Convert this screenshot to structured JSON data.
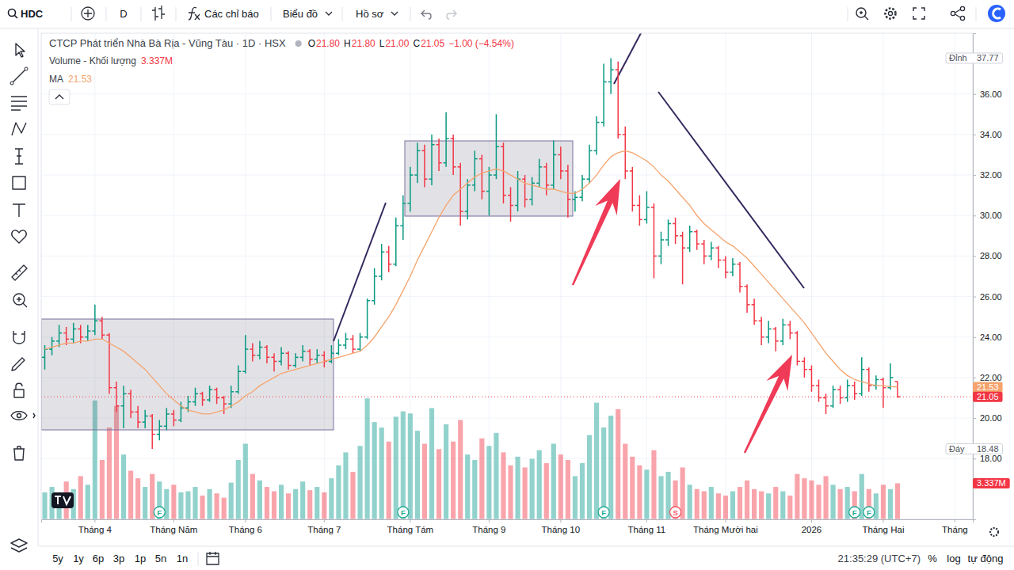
{
  "ui": {
    "symbol": "HDC",
    "interval": "D",
    "indicators": "Các chỉ báo",
    "chart_menu": "Biểu đồ",
    "profile_menu": "Hồ sơ",
    "ranges": [
      "5y",
      "1y",
      "6p",
      "3p",
      "1p",
      "5n",
      "1n"
    ],
    "clock": "21:35:29 (UTC+7)",
    "percent_button": "%",
    "log_button": "log",
    "auto_button": "tự động"
  },
  "chart_data": {
    "type": "ohlc",
    "title": "CTCP Phát triển Nhà Bà Rịa - Vũng Tàu · 1D · HSX",
    "ohlc_legend": [
      {
        "key": "O",
        "value": "21.80"
      },
      {
        "key": "H",
        "value": "21.80"
      },
      {
        "key": "L",
        "value": "21.00"
      },
      {
        "key": "C",
        "value": "21.05"
      }
    ],
    "change": "−1.00 (−4.54%)",
    "categories": [
      null,
      null,
      null,
      null,
      null,
      null,
      null,
      "Tháng 4",
      null,
      null,
      null,
      null,
      null,
      null,
      null,
      null,
      null,
      null,
      "Tháng Năm",
      null,
      null,
      null,
      null,
      null,
      null,
      null,
      null,
      null,
      "Tháng 6",
      null,
      null,
      null,
      null,
      null,
      null,
      null,
      null,
      null,
      null,
      "Tháng 7",
      null,
      null,
      null,
      null,
      null,
      null,
      null,
      null,
      null,
      null,
      null,
      "Tháng Tám",
      null,
      null,
      null,
      null,
      null,
      null,
      null,
      null,
      null,
      null,
      "Tháng 9",
      null,
      null,
      null,
      null,
      null,
      null,
      null,
      null,
      null,
      "Tháng 10",
      null,
      null,
      null,
      null,
      null,
      null,
      null,
      null,
      null,
      null,
      null,
      "Tháng 11",
      null,
      null,
      null,
      null,
      null,
      null,
      null,
      null,
      null,
      null,
      "Tháng Mười hai",
      null,
      null,
      null,
      null,
      null,
      null,
      null,
      null,
      null,
      null,
      null,
      "2026",
      null,
      null,
      null,
      null,
      null,
      null,
      null,
      null,
      null,
      "Tháng Hai",
      null,
      null,
      null,
      null,
      null,
      null,
      null,
      null,
      null,
      "Tháng",
      null,
      null
    ],
    "series": [
      {
        "type": "ohlc",
        "open": [
          23.0,
          23.4,
          23.8,
          24.2,
          23.9,
          24.4,
          24.0,
          24.3,
          24.8,
          24.1,
          21.5,
          20.6,
          21.2,
          20.3,
          19.8,
          20.1,
          19.2,
          19.6,
          20.2,
          19.9,
          20.5,
          20.8,
          21.2,
          20.9,
          21.4,
          21.0,
          20.7,
          21.3,
          22.3,
          23.4,
          23.1,
          23.5,
          23.0,
          22.8,
          23.2,
          22.6,
          23.0,
          23.3,
          22.9,
          23.1,
          22.8,
          23.2,
          23.6,
          23.9,
          23.4,
          24.0,
          25.8,
          27.0,
          28.2,
          27.6,
          29.5,
          30.6,
          32.0,
          33.2,
          31.8,
          33.5,
          32.6,
          33.8,
          32.4,
          30.2,
          31.5,
          32.8,
          31.2,
          32.0,
          33.4,
          31.0,
          30.5,
          31.8,
          30.8,
          31.6,
          32.4,
          31.5,
          33.0,
          32.2,
          30.8,
          30.9,
          31.8,
          33.2,
          34.6,
          36.6,
          37.2,
          34.0,
          32.2,
          30.5,
          29.8,
          30.4,
          28.0,
          28.8,
          29.6,
          29.0,
          28.4,
          29.2,
          28.6,
          28.0,
          28.4,
          27.8,
          27.2,
          27.6,
          26.5,
          25.6,
          24.8,
          24.0,
          24.4,
          23.8,
          24.6,
          24.2,
          22.8,
          22.4,
          21.6,
          21.0,
          20.6,
          21.4,
          21.0,
          21.6,
          21.2,
          22.4,
          21.6,
          21.9,
          21.5,
          21.8,
          null,
          null,
          null,
          null,
          null,
          null,
          null,
          null,
          null,
          null
        ],
        "high": [
          23.6,
          24.0,
          24.6,
          24.5,
          24.7,
          24.6,
          24.6,
          25.6,
          25.0,
          24.2,
          21.8,
          21.6,
          21.4,
          20.6,
          20.4,
          20.2,
          19.9,
          20.5,
          20.4,
          20.8,
          21.1,
          21.5,
          21.3,
          21.6,
          21.5,
          21.1,
          21.6,
          22.6,
          24.1,
          23.7,
          23.8,
          23.6,
          23.2,
          23.5,
          23.3,
          23.2,
          23.6,
          23.4,
          23.4,
          23.3,
          23.6,
          23.9,
          24.2,
          24.1,
          24.2,
          25.9,
          27.4,
          28.6,
          28.5,
          29.9,
          31.0,
          32.4,
          33.6,
          33.5,
          34.0,
          33.8,
          35.1,
          34.0,
          32.6,
          31.8,
          33.2,
          33.0,
          32.4,
          35.0,
          33.6,
          31.4,
          32.2,
          32.0,
          31.9,
          32.8,
          32.6,
          33.7,
          33.4,
          32.5,
          31.2,
          32.0,
          33.5,
          34.9,
          37.5,
          37.77,
          37.6,
          34.4,
          32.4,
          31.0,
          31.2,
          30.6,
          29.2,
          29.8,
          29.9,
          29.2,
          29.5,
          29.3,
          28.8,
          28.7,
          28.5,
          28.0,
          27.9,
          27.7,
          26.6,
          25.9,
          25.0,
          24.8,
          24.5,
          24.9,
          24.8,
          24.3,
          23.0,
          22.6,
          21.9,
          21.2,
          21.6,
          21.6,
          21.9,
          21.8,
          23.0,
          22.5,
          22.1,
          22.0,
          22.7,
          21.8,
          null,
          null,
          null,
          null,
          null,
          null,
          null,
          null,
          null,
          null
        ],
        "low": [
          22.4,
          23.1,
          23.5,
          23.6,
          23.7,
          23.7,
          23.8,
          24.1,
          23.9,
          21.2,
          20.3,
          19.5,
          20.0,
          19.5,
          19.5,
          18.48,
          18.9,
          19.4,
          19.6,
          19.8,
          20.3,
          20.6,
          20.6,
          20.8,
          20.7,
          20.2,
          20.5,
          21.2,
          22.2,
          22.8,
          22.9,
          22.7,
          22.3,
          22.6,
          22.4,
          22.5,
          22.8,
          22.6,
          22.7,
          22.5,
          22.7,
          23.1,
          23.4,
          23.2,
          23.3,
          23.9,
          25.6,
          26.8,
          27.2,
          27.5,
          28.8,
          30.2,
          31.6,
          31.4,
          31.5,
          32.2,
          32.4,
          32.0,
          29.5,
          29.8,
          31.2,
          30.8,
          30.0,
          31.8,
          30.6,
          29.7,
          30.2,
          30.4,
          30.5,
          31.4,
          31.0,
          31.3,
          31.8,
          29.9,
          30.2,
          30.7,
          31.6,
          33.0,
          34.4,
          36.0,
          33.8,
          31.8,
          30.2,
          29.5,
          29.6,
          26.9,
          27.6,
          28.5,
          28.6,
          26.6,
          28.2,
          28.3,
          27.6,
          27.8,
          27.4,
          26.9,
          27.0,
          26.2,
          25.2,
          24.6,
          23.6,
          23.7,
          23.3,
          23.6,
          23.9,
          22.6,
          22.0,
          21.3,
          20.8,
          20.2,
          20.5,
          20.7,
          20.8,
          20.9,
          21.1,
          21.3,
          21.4,
          20.5,
          21.4,
          21.0,
          null,
          null,
          null,
          null,
          null,
          null,
          null,
          null,
          null,
          null
        ],
        "close": [
          23.4,
          23.8,
          24.2,
          23.9,
          24.4,
          24.0,
          24.3,
          24.8,
          24.1,
          21.5,
          20.6,
          21.2,
          20.3,
          19.8,
          20.1,
          19.2,
          19.6,
          20.2,
          19.9,
          20.5,
          20.8,
          21.2,
          20.9,
          21.4,
          21.0,
          20.7,
          21.3,
          22.3,
          23.4,
          23.1,
          23.5,
          23.0,
          22.8,
          23.2,
          22.6,
          23.0,
          23.3,
          22.9,
          23.1,
          22.8,
          23.2,
          23.6,
          23.9,
          23.4,
          24.0,
          25.8,
          27.0,
          28.2,
          27.6,
          29.5,
          30.6,
          32.0,
          33.2,
          31.8,
          33.5,
          32.6,
          33.8,
          32.4,
          30.2,
          31.5,
          32.8,
          31.2,
          32.0,
          33.4,
          31.0,
          30.5,
          31.8,
          30.8,
          31.6,
          32.4,
          31.5,
          33.0,
          32.2,
          30.8,
          30.9,
          31.8,
          33.2,
          34.6,
          36.6,
          37.2,
          34.0,
          32.2,
          30.5,
          29.8,
          30.4,
          28.0,
          28.8,
          29.6,
          29.0,
          28.4,
          29.2,
          28.6,
          28.0,
          28.4,
          27.8,
          27.2,
          27.6,
          26.5,
          25.6,
          24.8,
          24.0,
          24.4,
          23.8,
          24.6,
          24.2,
          22.8,
          22.4,
          21.6,
          21.0,
          20.6,
          21.4,
          21.0,
          21.6,
          21.2,
          22.4,
          21.6,
          21.9,
          21.5,
          22.0,
          21.05,
          null,
          null,
          null,
          null,
          null,
          null,
          null,
          null,
          null,
          null
        ]
      },
      {
        "name": "Volume - Khối lượng",
        "type": "bar",
        "axis": "y2",
        "legend_value": "3.337M",
        "values": [
          2.5,
          3.0,
          2.2,
          3.5,
          2.8,
          4.0,
          3.2,
          11.0,
          5.5,
          8.5,
          10.5,
          6.0,
          4.5,
          3.8,
          3.0,
          4.2,
          3.5,
          2.8,
          3.2,
          2.5,
          2.6,
          3.0,
          2.2,
          2.8,
          2.4,
          2.0,
          3.4,
          5.5,
          7.0,
          4.2,
          3.6,
          3.0,
          2.6,
          3.2,
          2.4,
          2.8,
          3.5,
          2.7,
          3.0,
          2.5,
          3.8,
          5.0,
          6.2,
          4.4,
          6.8,
          11.2,
          9.0,
          8.5,
          7.2,
          9.5,
          10.0,
          9.8,
          8.2,
          7.0,
          10.3,
          6.5,
          8.8,
          7.2,
          9.2,
          6.0,
          5.5,
          7.5,
          6.8,
          8.0,
          6.2,
          5.0,
          5.8,
          4.8,
          5.6,
          6.4,
          5.2,
          7.0,
          6.0,
          5.5,
          4.0,
          5.2,
          7.8,
          10.8,
          8.5,
          9.6,
          10.2,
          7.0,
          5.8,
          5.0,
          4.6,
          6.4,
          4.0,
          4.4,
          3.6,
          4.8,
          3.2,
          2.8,
          2.6,
          3.0,
          2.4,
          2.2,
          2.6,
          3.0,
          3.6,
          2.8,
          2.6,
          2.4,
          3.0,
          2.6,
          2.2,
          4.2,
          3.8,
          3.6,
          3.2,
          4.0,
          3.2,
          2.8,
          3.0,
          2.6,
          4.2,
          2.8,
          2.4,
          3.2,
          2.8,
          3.337,
          null,
          null,
          null,
          null,
          null,
          null,
          null,
          null,
          null,
          null
        ]
      },
      {
        "name": "MA",
        "type": "line",
        "color": "#f5a36c",
        "values": [
          23.4,
          23.5,
          23.6,
          23.7,
          23.7,
          23.8,
          23.8,
          23.9,
          23.9,
          23.7,
          23.5,
          23.3,
          23.0,
          22.7,
          22.4,
          22.0,
          21.6,
          21.2,
          20.9,
          20.6,
          20.4,
          20.3,
          20.2,
          20.2,
          20.3,
          20.4,
          20.6,
          20.8,
          21.1,
          21.3,
          21.6,
          21.8,
          22.0,
          22.2,
          22.3,
          22.4,
          22.5,
          22.6,
          22.7,
          22.8,
          22.9,
          23.0,
          23.1,
          23.2,
          23.3,
          23.6,
          24.0,
          24.5,
          25.0,
          25.6,
          26.3,
          27.0,
          27.8,
          28.5,
          29.2,
          29.9,
          30.5,
          31.0,
          31.3,
          31.6,
          31.9,
          32.1,
          32.2,
          32.3,
          32.2,
          32.0,
          31.8,
          31.6,
          31.5,
          31.4,
          31.3,
          31.3,
          31.2,
          31.1,
          31.1,
          31.3,
          31.6,
          32.0,
          32.5,
          32.9,
          33.1,
          33.2,
          33.1,
          32.9,
          32.7,
          32.4,
          32.0,
          31.7,
          31.3,
          30.9,
          30.5,
          30.0,
          29.6,
          29.3,
          29.0,
          28.7,
          28.5,
          28.2,
          27.9,
          27.5,
          27.1,
          26.7,
          26.3,
          25.9,
          25.5,
          25.1,
          24.7,
          24.2,
          23.7,
          23.2,
          22.8,
          22.4,
          22.1,
          21.9,
          21.8,
          21.7,
          21.6,
          21.6,
          21.55,
          21.53,
          null,
          null,
          null,
          null,
          null,
          null,
          null,
          null,
          null,
          null
        ]
      }
    ],
    "ylim": [
      15,
      39
    ],
    "yticks": [
      {
        "value": 18,
        "label": "18.00"
      },
      {
        "value": 20,
        "label": "20.00"
      },
      {
        "value": 22,
        "label": "22.00"
      },
      {
        "value": 24,
        "label": "24.00"
      },
      {
        "value": 26,
        "label": "26.00"
      },
      {
        "value": 28,
        "label": "28.00"
      },
      {
        "value": 30,
        "label": "30.00"
      },
      {
        "value": 32,
        "label": "32.00"
      },
      {
        "value": 34,
        "label": "34.00"
      },
      {
        "value": 36,
        "label": "36.00"
      }
    ],
    "y2lim": [
      0,
      45
    ],
    "y2ticks": [],
    "grid": true,
    "price_tags": [
      {
        "label": "Đỉnh",
        "value": 37.77
      },
      {
        "label": "Đáy",
        "value": 18.48
      }
    ],
    "events": [
      {
        "index": 16,
        "label": "F",
        "color": "#22ab94"
      },
      {
        "index": 50,
        "label": "F",
        "color": "#22ab94"
      },
      {
        "index": 78,
        "label": "F",
        "color": "#22ab94"
      },
      {
        "index": 88,
        "label": "S",
        "color": "#f7525f"
      },
      {
        "index": 113,
        "label": "F",
        "color": "#22ab94"
      },
      {
        "index": 115,
        "label": "F",
        "color": "#22ab94"
      }
    ]
  }
}
